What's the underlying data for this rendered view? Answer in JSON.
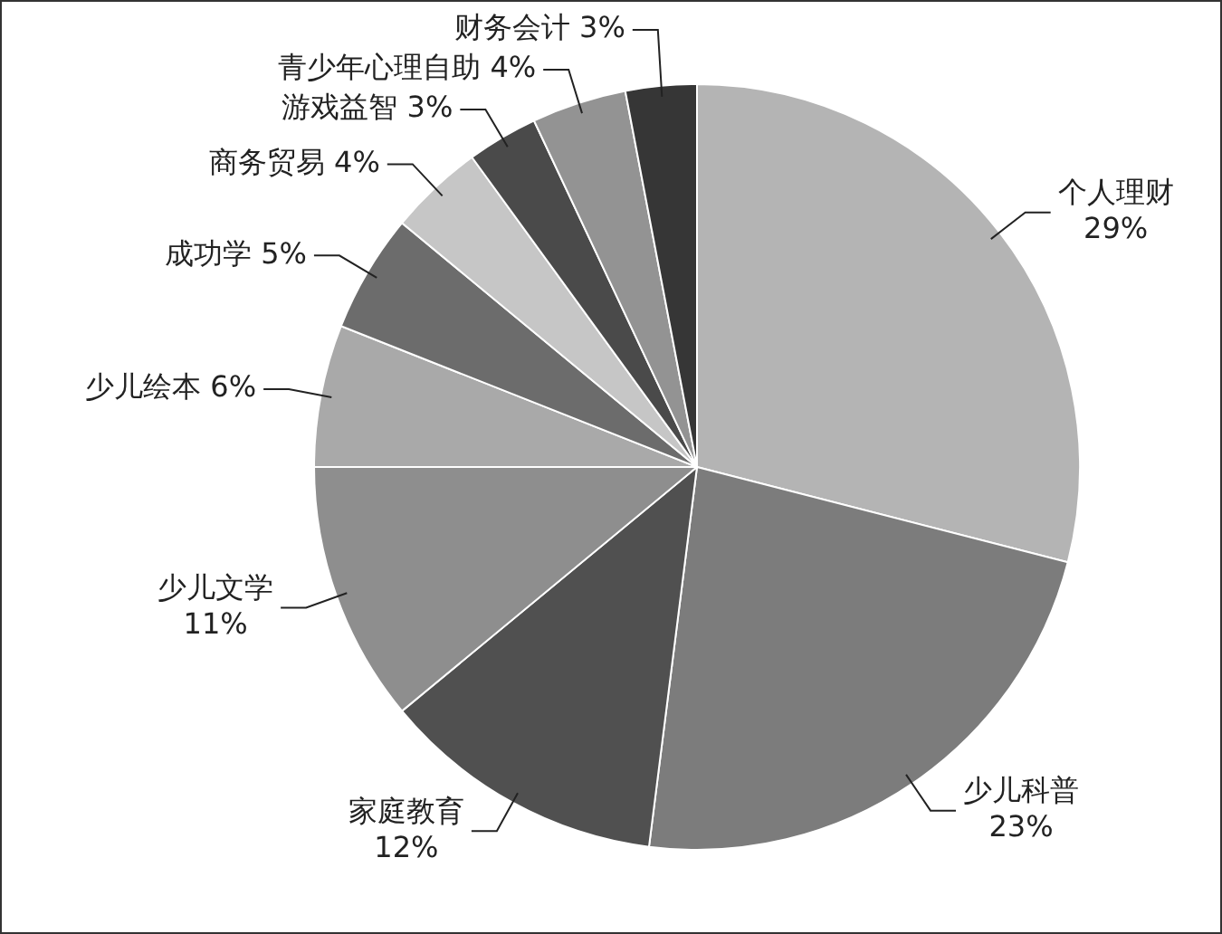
{
  "chart_data": {
    "type": "pie",
    "categories": [
      "个人理财",
      "少儿科普",
      "家庭教育",
      "少儿文学",
      "少儿绘本",
      "成功学",
      "商务贸易",
      "游戏益智",
      "青少年心理自助",
      "财务会计"
    ],
    "values": [
      29,
      23,
      12,
      11,
      6,
      5,
      4,
      3,
      4,
      3
    ],
    "value_labels": [
      "29%",
      "23%",
      "12%",
      "11%",
      "6%",
      "5%",
      "4%",
      "3%",
      "4%",
      "3%"
    ],
    "colors": [
      "#b4b4b4",
      "#7c7c7c",
      "#505050",
      "#8e8e8e",
      "#a9a9a9",
      "#6c6c6c",
      "#c6c6c6",
      "#4a4a4a",
      "#939393",
      "#363636"
    ],
    "legend": false
  }
}
